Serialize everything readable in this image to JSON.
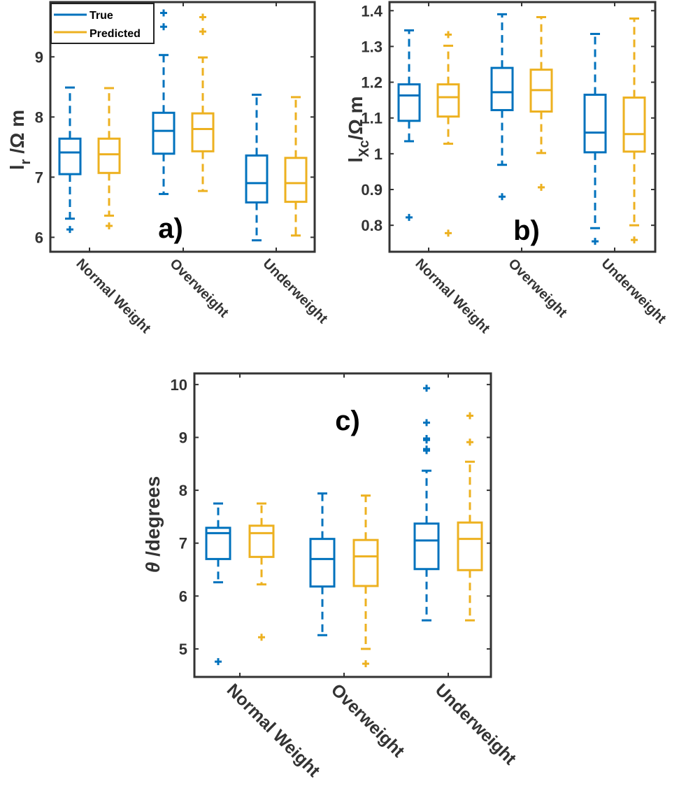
{
  "colors": {
    "true": "#0072BD",
    "predicted": "#EDB120",
    "axis": "#333333"
  },
  "legend": {
    "entries": [
      "True",
      "Predicted"
    ],
    "placement": "top-left (panel a)"
  },
  "chart_data": [
    {
      "type": "box",
      "panel_label": "a)",
      "ylabel": {
        "main": "l",
        "sub": "r",
        "unit": " /Ω m"
      },
      "categories": [
        "Normal Weight",
        "Overweight",
        "Underweight"
      ],
      "ylim": [
        5.76,
        9.91
      ],
      "yticks": [
        6,
        7,
        8,
        9
      ],
      "series": [
        {
          "name": "True",
          "boxes": [
            {
              "whisker_low": 6.31,
              "q1": 7.05,
              "median": 7.41,
              "q3": 7.64,
              "whisker_high": 8.49,
              "outliers": [
                6.13
              ]
            },
            {
              "whisker_low": 6.72,
              "q1": 7.39,
              "median": 7.77,
              "q3": 8.07,
              "whisker_high": 9.03,
              "outliers": [
                9.5,
                9.73
              ]
            },
            {
              "whisker_low": 5.95,
              "q1": 6.58,
              "median": 6.9,
              "q3": 7.36,
              "whisker_high": 8.37,
              "outliers": []
            }
          ]
        },
        {
          "name": "Predicted",
          "boxes": [
            {
              "whisker_low": 6.36,
              "q1": 7.07,
              "median": 7.38,
              "q3": 7.64,
              "whisker_high": 8.48,
              "outliers": [
                6.19
              ]
            },
            {
              "whisker_low": 6.77,
              "q1": 7.43,
              "median": 7.8,
              "q3": 8.06,
              "whisker_high": 8.99,
              "outliers": [
                9.42,
                9.66
              ]
            },
            {
              "whisker_low": 6.03,
              "q1": 6.59,
              "median": 6.9,
              "q3": 7.32,
              "whisker_high": 8.33,
              "outliers": []
            }
          ]
        }
      ]
    },
    {
      "type": "box",
      "panel_label": "b)",
      "ylabel": {
        "main": "l",
        "sub": "Xc",
        "unit": "/Ω m"
      },
      "categories": [
        "Normal Weight",
        "Overweight",
        "Underweight"
      ],
      "ylim": [
        0.726,
        1.424
      ],
      "yticks": [
        0.8,
        0.9,
        1,
        1.1,
        1.2,
        1.3,
        1.4
      ],
      "series": [
        {
          "name": "True",
          "boxes": [
            {
              "whisker_low": 1.035,
              "q1": 1.092,
              "median": 1.163,
              "q3": 1.194,
              "whisker_high": 1.345,
              "outliers": [
                0.822
              ]
            },
            {
              "whisker_low": 0.969,
              "q1": 1.122,
              "median": 1.172,
              "q3": 1.24,
              "whisker_high": 1.39,
              "outliers": [
                0.88
              ]
            },
            {
              "whisker_low": 0.792,
              "q1": 1.004,
              "median": 1.059,
              "q3": 1.165,
              "whisker_high": 1.335,
              "outliers": [
                0.755
              ]
            }
          ]
        },
        {
          "name": "Predicted",
          "boxes": [
            {
              "whisker_low": 1.028,
              "q1": 1.104,
              "median": 1.158,
              "q3": 1.194,
              "whisker_high": 1.302,
              "outliers": [
                1.333,
                0.778
              ]
            },
            {
              "whisker_low": 1.002,
              "q1": 1.118,
              "median": 1.178,
              "q3": 1.235,
              "whisker_high": 1.382,
              "outliers": [
                0.906
              ]
            },
            {
              "whisker_low": 0.8,
              "q1": 1.006,
              "median": 1.055,
              "q3": 1.157,
              "whisker_high": 1.378,
              "outliers": [
                0.759
              ]
            }
          ]
        }
      ]
    },
    {
      "type": "box",
      "panel_label": "c)",
      "ylabel": {
        "main": "θ",
        "sub": "",
        "unit": " /degrees"
      },
      "categories": [
        "Normal Weight",
        "Overweight",
        "Underweight"
      ],
      "ylim": [
        4.47,
        10.21
      ],
      "yticks": [
        5,
        6,
        7,
        8,
        9,
        10
      ],
      "series": [
        {
          "name": "True",
          "boxes": [
            {
              "whisker_low": 6.26,
              "q1": 6.7,
              "median": 7.19,
              "q3": 7.29,
              "whisker_high": 7.75,
              "outliers": [
                4.76
              ]
            },
            {
              "whisker_low": 5.26,
              "q1": 6.18,
              "median": 6.7,
              "q3": 7.08,
              "whisker_high": 7.94,
              "outliers": []
            },
            {
              "whisker_low": 5.54,
              "q1": 6.51,
              "median": 7.05,
              "q3": 7.37,
              "whisker_high": 8.37,
              "outliers": [
                8.75,
                8.78,
                8.95,
                8.98,
                9.28,
                9.93
              ]
            }
          ]
        },
        {
          "name": "Predicted",
          "boxes": [
            {
              "whisker_low": 6.22,
              "q1": 6.74,
              "median": 7.19,
              "q3": 7.33,
              "whisker_high": 7.75,
              "outliers": [
                5.22
              ]
            },
            {
              "whisker_low": 5.0,
              "q1": 6.19,
              "median": 6.75,
              "q3": 7.06,
              "whisker_high": 7.9,
              "outliers": [
                4.72
              ]
            },
            {
              "whisker_low": 5.54,
              "q1": 6.49,
              "median": 7.08,
              "q3": 7.39,
              "whisker_high": 8.54,
              "outliers": [
                8.91,
                9.41
              ]
            }
          ]
        }
      ]
    }
  ]
}
